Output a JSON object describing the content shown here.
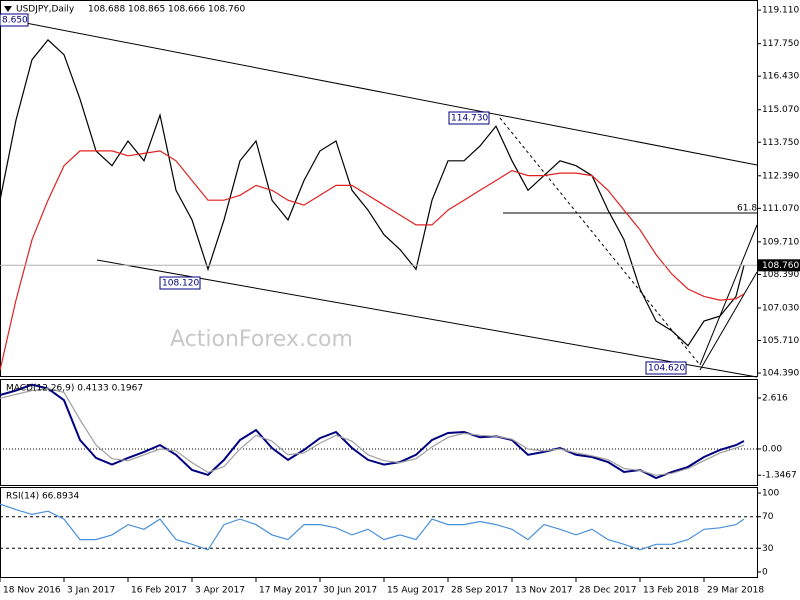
{
  "chart_data": [
    {
      "type": "line",
      "title": "USDJPY,Daily",
      "ohlc": [
        108.688,
        108.865,
        108.666,
        108.76
      ],
      "ohlc_labels": [
        "108.688",
        "108.865",
        "108.666",
        "108.760"
      ],
      "annotations": [
        "8.650",
        "114.730",
        "108.120",
        "104.620",
        "61.8"
      ],
      "watermark": "ActionForex.com",
      "x": [
        0,
        8,
        16,
        24,
        32,
        40,
        48,
        56,
        64,
        72,
        80,
        88,
        96,
        104,
        112,
        120,
        128,
        136,
        144,
        152,
        160,
        168,
        176,
        184,
        192,
        200,
        208,
        216,
        224,
        232,
        240,
        248,
        256,
        264,
        272,
        280,
        288,
        296,
        304,
        312,
        320,
        328,
        336,
        344,
        352,
        360,
        368,
        372
      ],
      "series": [
        {
          "color": "#000000",
          "values": [
            111.4,
            114.65,
            117.1,
            117.9,
            117.3,
            115.5,
            113.4,
            112.8,
            113.8,
            113.0,
            114.85,
            111.8,
            110.6,
            108.6,
            110.6,
            113.0,
            113.8,
            111.4,
            110.6,
            112.2,
            113.4,
            113.8,
            111.8,
            111.0,
            110.0,
            109.4,
            108.6,
            111.4,
            113.0,
            113.0,
            113.6,
            114.4,
            113.0,
            111.8,
            112.4,
            113.0,
            112.8,
            112.4,
            111.0,
            109.8,
            107.8,
            106.5,
            106.1,
            105.5,
            106.5,
            106.7,
            107.5,
            108.76
          ]
        },
        {
          "color": "#e02020",
          "values": [
            104.5,
            107.35,
            109.8,
            111.4,
            112.8,
            113.4,
            113.4,
            113.4,
            113.2,
            113.3,
            113.4,
            113.0,
            112.2,
            111.4,
            111.4,
            111.6,
            112.0,
            111.8,
            111.4,
            111.2,
            111.6,
            112.0,
            112.0,
            111.6,
            111.2,
            110.8,
            110.4,
            110.4,
            111.0,
            111.4,
            111.8,
            112.2,
            112.6,
            112.4,
            112.4,
            112.5,
            112.5,
            112.4,
            111.8,
            111.0,
            110.2,
            109.2,
            108.4,
            107.8,
            107.5,
            107.35,
            107.4,
            107.6
          ]
        }
      ],
      "xlim": [
        0,
        378.5
      ],
      "ylim": [
        104.23,
        119.52
      ],
      "yticks": [
        {
          "value": 119.11,
          "label": "119.110"
        },
        {
          "value": 117.75,
          "label": "117.750"
        },
        {
          "value": 116.43,
          "label": "116.430"
        },
        {
          "value": 115.07,
          "label": "115.070"
        },
        {
          "value": 113.75,
          "label": "113.750"
        },
        {
          "value": 112.39,
          "label": "112.390"
        },
        {
          "value": 111.07,
          "label": "111.070"
        },
        {
          "value": 109.71,
          "label": "109.710"
        },
        {
          "value": 108.39,
          "label": "108.390"
        },
        {
          "value": 107.03,
          "label": "107.030"
        },
        {
          "value": 105.71,
          "label": "105.710"
        },
        {
          "value": 104.39,
          "label": "104.390"
        }
      ]
    },
    {
      "type": "line",
      "title": "MACD(12,26,9) 0.4133 0.1967",
      "x": [
        0,
        8,
        16,
        24,
        32,
        40,
        48,
        56,
        64,
        72,
        80,
        88,
        96,
        104,
        112,
        120,
        128,
        136,
        144,
        152,
        160,
        168,
        176,
        184,
        192,
        200,
        208,
        216,
        224,
        232,
        240,
        248,
        256,
        264,
        272,
        280,
        288,
        296,
        304,
        312,
        320,
        328,
        336,
        344,
        352,
        360,
        368,
        372
      ],
      "series": [
        {
          "color": "#000080",
          "values": [
            2.77,
            3.0,
            3.3,
            3.1,
            2.5,
            0.46,
            -0.46,
            -0.8,
            -0.46,
            -0.15,
            0.2,
            -0.3,
            -1.08,
            -1.33,
            -0.56,
            0.46,
            0.97,
            0.05,
            -0.56,
            -0.05,
            0.56,
            0.87,
            0.05,
            -0.56,
            -0.8,
            -0.67,
            -0.3,
            0.46,
            0.82,
            0.87,
            0.6,
            0.65,
            0.46,
            -0.3,
            -0.15,
            0.05,
            -0.3,
            -0.41,
            -0.67,
            -1.18,
            -1.08,
            -1.49,
            -1.18,
            -0.92,
            -0.41,
            -0.05,
            0.2,
            0.41
          ]
        },
        {
          "color": "#a0a0a0",
          "values": [
            2.6,
            2.8,
            3.0,
            3.1,
            2.9,
            1.5,
            0.2,
            -0.5,
            -0.6,
            -0.3,
            0.0,
            -0.1,
            -0.7,
            -1.2,
            -0.9,
            0.0,
            0.7,
            0.4,
            -0.3,
            -0.2,
            0.3,
            0.7,
            0.4,
            -0.3,
            -0.6,
            -0.7,
            -0.5,
            0.1,
            0.6,
            0.8,
            0.7,
            0.65,
            0.5,
            0.0,
            -0.1,
            0.0,
            -0.2,
            -0.35,
            -0.55,
            -1.0,
            -1.1,
            -1.35,
            -1.25,
            -1.0,
            -0.6,
            -0.2,
            0.05,
            0.2
          ]
        }
      ],
      "xlim": [
        0,
        378.5
      ],
      "ylim": [
        -1.9,
        3.59
      ],
      "yticks": [
        2.616,
        {
          "value": 0,
          "label": "0.00"
        },
        -1.3467
      ]
    },
    {
      "type": "line",
      "title": "RSI(14) 66.8934",
      "x": [
        0,
        8,
        16,
        24,
        32,
        40,
        48,
        56,
        64,
        72,
        80,
        88,
        96,
        104,
        112,
        120,
        128,
        136,
        144,
        152,
        160,
        168,
        176,
        184,
        192,
        200,
        208,
        216,
        224,
        232,
        240,
        248,
        256,
        264,
        272,
        280,
        288,
        296,
        304,
        312,
        320,
        328,
        336,
        344,
        352,
        360,
        368,
        372
      ],
      "series": [
        {
          "color": "#4a90d9",
          "values": [
            86,
            79,
            73,
            77,
            67,
            41,
            41,
            47,
            60,
            54,
            67,
            41,
            35,
            28,
            60,
            67,
            60,
            47,
            41,
            60,
            60,
            56,
            47,
            54,
            41,
            47,
            41,
            67,
            60,
            60,
            64,
            60,
            54,
            41,
            60,
            54,
            47,
            54,
            41,
            35,
            28,
            35,
            35,
            41,
            54,
            56,
            60,
            67
          ]
        }
      ],
      "xlim": [
        0,
        378.5
      ],
      "ylim": [
        -7.7,
        107.7
      ],
      "yticks": [
        100,
        70,
        30,
        0
      ],
      "levels": [
        70,
        30
      ],
      "xticks": [
        {
          "value": 0,
          "label": "18 Nov 2016"
        },
        {
          "value": 32,
          "label": "3 Jan 2017"
        },
        {
          "value": 64,
          "label": "16 Feb 2017"
        },
        {
          "value": 96,
          "label": "3 Apr 2017"
        },
        {
          "value": 128,
          "label": "17 May 2017"
        },
        {
          "value": 160,
          "label": "30 Jun 2017"
        },
        {
          "value": 192,
          "label": "15 Aug 2017"
        },
        {
          "value": 224,
          "label": "28 Sep 2017"
        },
        {
          "value": 256,
          "label": "13 Nov 2017"
        },
        {
          "value": 288,
          "label": "28 Dec 2017"
        },
        {
          "value": 320,
          "label": "13 Feb 2018"
        },
        {
          "value": 352,
          "label": "29 Mar 2018"
        }
      ]
    }
  ]
}
